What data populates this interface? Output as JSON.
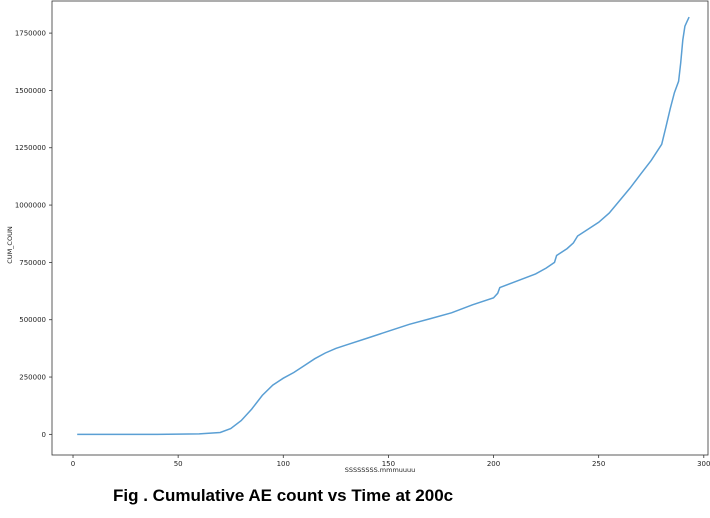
{
  "caption": "Fig . Cumulative AE count vs Time at 200c",
  "chart_data": {
    "type": "line",
    "xlabel": "SSSSSSSS.mmmuuuu",
    "ylabel": "CUM_COUN",
    "xlim": [
      -10,
      302
    ],
    "ylim": [
      -90000,
      1890000
    ],
    "xticks": [
      0,
      50,
      100,
      150,
      200,
      250,
      300
    ],
    "yticks": [
      0,
      250000,
      500000,
      750000,
      1000000,
      1250000,
      1500000,
      1750000
    ],
    "series_color": "#5a9fd4",
    "grid": false,
    "series": [
      {
        "x": [
          2,
          20,
          40,
          60,
          70,
          75,
          80,
          85,
          90,
          95,
          100,
          105,
          110,
          115,
          120,
          125,
          130,
          140,
          150,
          160,
          170,
          180,
          190,
          200,
          202,
          203,
          210,
          220,
          225,
          229,
          230,
          235,
          238,
          240,
          245,
          250,
          255,
          260,
          265,
          270,
          275,
          280,
          282,
          284,
          286,
          288,
          289,
          290,
          291,
          292,
          293
        ],
        "y": [
          0,
          0,
          0,
          2000,
          8000,
          25000,
          60000,
          110000,
          170000,
          215000,
          245000,
          270000,
          300000,
          330000,
          355000,
          375000,
          390000,
          420000,
          450000,
          480000,
          505000,
          530000,
          565000,
          595000,
          615000,
          640000,
          665000,
          700000,
          725000,
          750000,
          780000,
          810000,
          835000,
          865000,
          895000,
          925000,
          965000,
          1020000,
          1075000,
          1135000,
          1195000,
          1265000,
          1340000,
          1420000,
          1490000,
          1540000,
          1620000,
          1720000,
          1780000,
          1800000,
          1820000
        ]
      }
    ]
  }
}
